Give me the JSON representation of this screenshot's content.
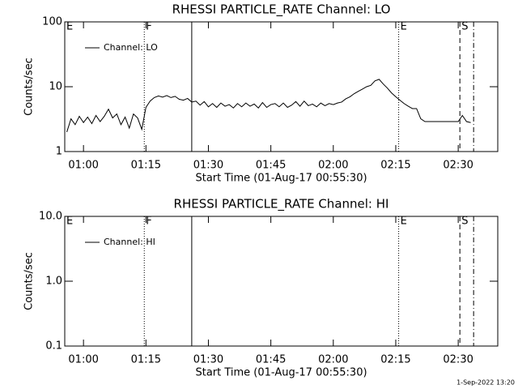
{
  "chart_data": [
    {
      "type": "line",
      "title": "RHESSI PARTICLE_RATE Channel: LO",
      "xlabel": "Start Time (01-Aug-17 00:55:30)",
      "ylabel": "Counts/sec",
      "xlim": [
        55.5,
        159.5
      ],
      "xticks": [
        {
          "value": 60,
          "label": "01:00"
        },
        {
          "value": 75,
          "label": "01:15"
        },
        {
          "value": 90,
          "label": "01:30"
        },
        {
          "value": 105,
          "label": "01:45"
        },
        {
          "value": 120,
          "label": "02:00"
        },
        {
          "value": 135,
          "label": "02:15"
        },
        {
          "value": 150,
          "label": "02:30"
        }
      ],
      "ylim": [
        1,
        100
      ],
      "yticks": [
        1,
        10,
        100
      ],
      "log_y": true,
      "legend": "upper left",
      "markers": [
        {
          "x": 55.5,
          "label": "E",
          "style": "dotted"
        },
        {
          "x": 74.6,
          "label": "F",
          "style": "dotted"
        },
        {
          "x": 86.0,
          "style": "solid"
        },
        {
          "x": 135.7,
          "label": "E",
          "style": "dotted"
        },
        {
          "x": 150.4,
          "label": "S",
          "style": "dashed"
        },
        {
          "x": 153.7,
          "style": "dashdot"
        }
      ],
      "series": [
        {
          "name": "Channel: LO",
          "color": "#000000",
          "x": [
            56,
            57,
            58,
            59,
            60,
            61,
            62,
            63,
            64,
            65,
            66,
            67,
            68,
            69,
            70,
            71,
            72,
            73,
            74,
            75,
            76,
            77,
            78,
            79,
            80,
            81,
            82,
            83,
            84,
            85,
            86,
            87,
            88,
            89,
            90,
            91,
            92,
            93,
            94,
            95,
            96,
            97,
            98,
            99,
            100,
            101,
            102,
            103,
            104,
            105,
            106,
            107,
            108,
            109,
            110,
            111,
            112,
            113,
            114,
            115,
            116,
            117,
            118,
            119,
            120,
            121,
            122,
            123,
            124,
            125,
            126,
            127,
            128,
            129,
            130,
            131,
            132,
            133,
            134,
            135,
            136,
            137,
            138,
            139,
            140,
            141,
            142,
            143,
            144,
            145,
            146,
            147,
            148,
            149,
            150,
            151,
            152,
            153
          ],
          "values": [
            2.0,
            3.2,
            2.6,
            3.5,
            2.8,
            3.4,
            2.7,
            3.6,
            2.9,
            3.5,
            4.5,
            3.3,
            3.8,
            2.6,
            3.4,
            2.3,
            3.8,
            3.3,
            2.2,
            4.8,
            6.0,
            6.8,
            7.2,
            6.9,
            7.3,
            6.8,
            7.1,
            6.4,
            6.2,
            6.6,
            5.8,
            6.0,
            5.2,
            5.9,
            4.9,
            5.5,
            4.8,
            5.6,
            5.0,
            5.3,
            4.7,
            5.5,
            4.9,
            5.6,
            5.0,
            5.4,
            4.7,
            5.7,
            4.8,
            5.3,
            5.5,
            4.9,
            5.6,
            4.8,
            5.2,
            5.9,
            5.0,
            6.0,
            5.1,
            5.4,
            4.9,
            5.6,
            5.1,
            5.5,
            5.3,
            5.6,
            5.8,
            6.5,
            7.0,
            7.8,
            8.5,
            9.2,
            10.0,
            10.5,
            12.3,
            13.0,
            11.0,
            9.5,
            8.0,
            7.0,
            6.2,
            5.5,
            5.0,
            4.6,
            4.6,
            3.2,
            2.9,
            2.9,
            2.9,
            2.9,
            2.9,
            2.9,
            2.9,
            2.9,
            2.9,
            3.6,
            2.9,
            2.8
          ]
        }
      ]
    },
    {
      "type": "line",
      "title": "RHESSI PARTICLE_RATE Channel: HI",
      "xlabel": "Start Time (01-Aug-17 00:55:30)",
      "ylabel": "Counts/sec",
      "xlim": [
        55.5,
        159.5
      ],
      "xticks": [
        {
          "value": 60,
          "label": "01:00"
        },
        {
          "value": 75,
          "label": "01:15"
        },
        {
          "value": 90,
          "label": "01:30"
        },
        {
          "value": 105,
          "label": "01:45"
        },
        {
          "value": 120,
          "label": "02:00"
        },
        {
          "value": 135,
          "label": "02:15"
        },
        {
          "value": 150,
          "label": "02:30"
        }
      ],
      "ylim": [
        0.1,
        10
      ],
      "yticks": [
        0.1,
        {
          "value": 1,
          "label": "1.0"
        },
        {
          "value": 10,
          "label": "10.0"
        }
      ],
      "log_y": true,
      "legend": "upper left",
      "markers": [
        {
          "x": 55.5,
          "label": "E",
          "style": "dotted"
        },
        {
          "x": 74.6,
          "label": "F",
          "style": "dotted"
        },
        {
          "x": 86.0,
          "style": "solid"
        },
        {
          "x": 135.7,
          "label": "E",
          "style": "dotted"
        },
        {
          "x": 150.4,
          "label": "S",
          "style": "dashed"
        },
        {
          "x": 153.7,
          "style": "dashdot"
        }
      ],
      "series": [
        {
          "name": "Channel: HI",
          "color": "#000000",
          "x": [],
          "values": []
        }
      ]
    }
  ],
  "footer": "1-Sep-2022 13:20"
}
